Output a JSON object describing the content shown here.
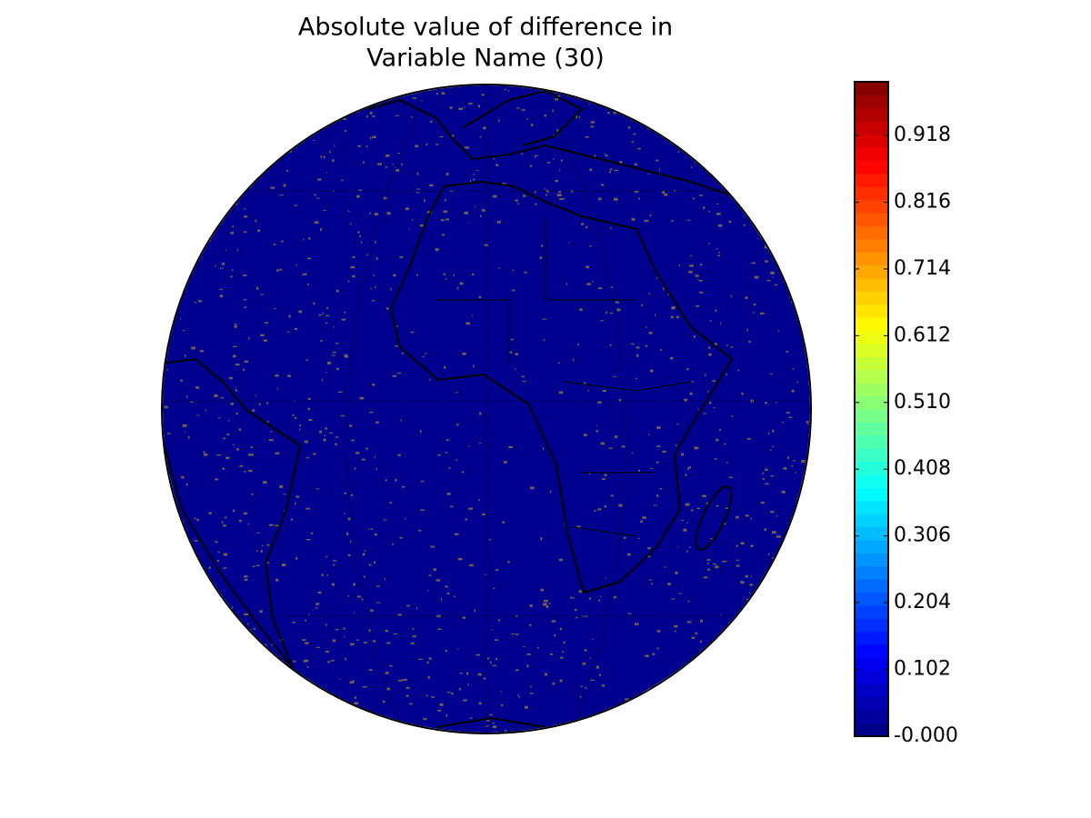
{
  "title": [
    "Absolute value of difference in",
    "Variable Name (30)"
  ],
  "colorbar": {
    "lim": [
      0,
      1.0
    ],
    "ticks": [
      {
        "value": 0,
        "label": "-0.000"
      },
      0.102,
      0.204,
      0.306,
      0.408,
      {
        "value": 0.51,
        "label": "0.510"
      },
      0.612,
      0.714,
      0.816,
      0.918
    ],
    "colormap": "jet",
    "levels": 50
  }
}
